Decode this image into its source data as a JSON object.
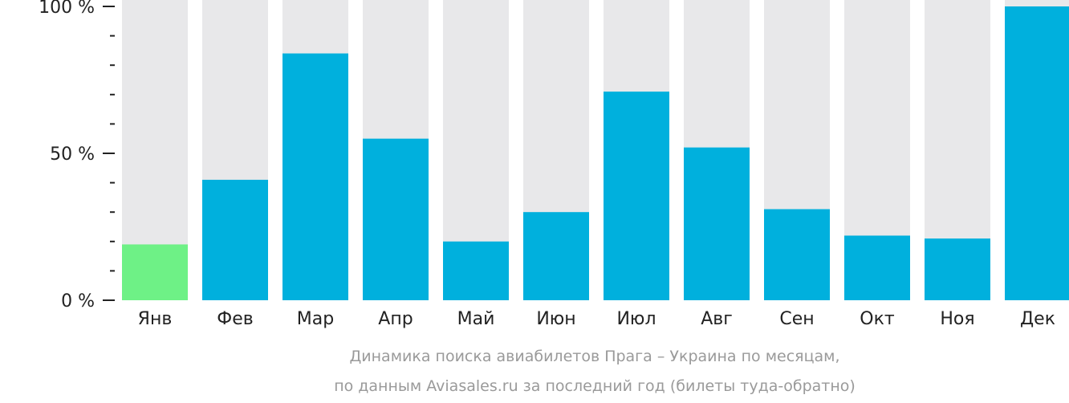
{
  "chart_data": {
    "type": "bar",
    "categories": [
      "Янв",
      "Фев",
      "Мар",
      "Апр",
      "Май",
      "Июн",
      "Июл",
      "Авг",
      "Сен",
      "Окт",
      "Ноя",
      "Дек"
    ],
    "values": [
      19,
      41,
      84,
      55,
      20,
      30,
      71,
      52,
      31,
      22,
      21,
      100
    ],
    "ylim": [
      0,
      100
    ],
    "y_ticks": [
      {
        "value": 0,
        "label": "0 %"
      },
      {
        "value": 50,
        "label": "50 %"
      },
      {
        "value": 100,
        "label": "100 %"
      }
    ],
    "y_minor_ticks": [
      10,
      20,
      30,
      40,
      60,
      70,
      80,
      90
    ],
    "caption_line1": "Динамика поиска авиабилетов Прага – Украина по месяцам,",
    "caption_line2": "по данным Aviasales.ru за последний год (билеты туда-обратно)",
    "highlight_index": 0,
    "colors": {
      "bar": "#00b0dd",
      "highlight": "#6ef186",
      "background_bar": "#e8e8ea",
      "axis": "#222222",
      "caption": "#9a9a9a"
    }
  }
}
